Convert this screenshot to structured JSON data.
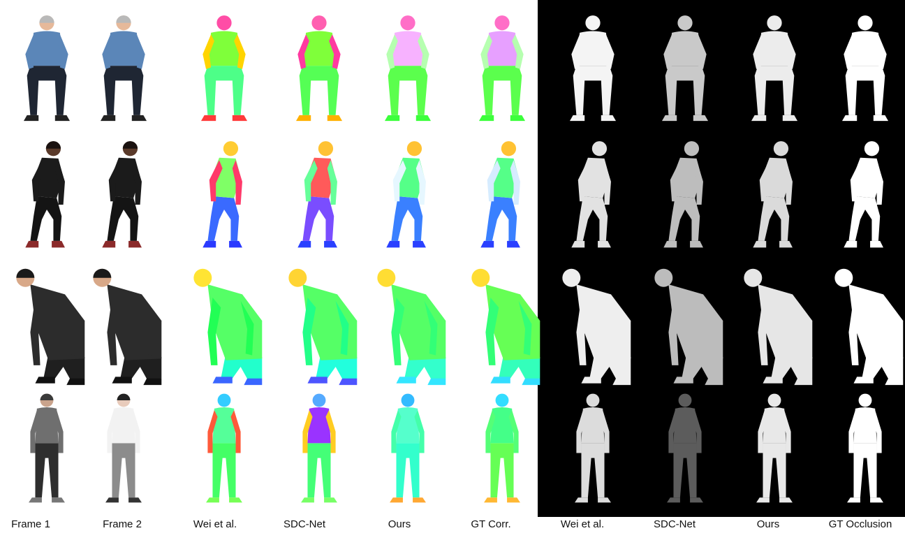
{
  "figure": {
    "captions": [
      "Frame 1",
      "Frame 2",
      "Wei et al.",
      "SDC-Net",
      "Ours",
      "GT Corr.",
      "Wei et al.",
      "SDC-Net",
      "Ours",
      "GT Occlusion"
    ],
    "rows": [
      {
        "id": "seated-man",
        "pose": "sit",
        "frame1": {
          "skin": "#e6b99a",
          "hair": "#b9b9b9",
          "top": "#5b86b8",
          "bottom": "#1f2633",
          "shoe": "#222222"
        },
        "frame2": {
          "skin": "#e6b99a",
          "hair": "#b9b9b9",
          "top": "#5b86b8",
          "bottom": "#1f2633",
          "shoe": "#222222"
        },
        "corr": {
          "wei": [
            "#ff4da6",
            "#7fff3a",
            "#ffd400",
            "#4dff88",
            "#ff3a3a"
          ],
          "sdc": [
            "#ff5fb0",
            "#7fff3a",
            "#ff3aa0",
            "#55ff55",
            "#ffb000"
          ],
          "ours": [
            "#ff6ec7",
            "#f7b2ff",
            "#b6ffb0",
            "#5bff4d",
            "#3cff3c"
          ],
          "gt": [
            "#ff6ec7",
            "#e7a0ff",
            "#b6ffb0",
            "#5bff4d",
            "#3cff3c"
          ]
        },
        "occ": {
          "wei": "#f4f4f4",
          "sdc": "#c9c9c9",
          "ours": "#ececec",
          "gt": "#ffffff"
        }
      },
      {
        "id": "crouching-woman",
        "pose": "crouch",
        "frame1": {
          "skin": "#5a3a2a",
          "hair": "#1a1210",
          "top": "#1b1b1b",
          "bottom": "#141414",
          "shoe": "#8b2a2a"
        },
        "frame2": {
          "skin": "#5a3a2a",
          "hair": "#1a1210",
          "top": "#1b1b1b",
          "bottom": "#141414",
          "shoe": "#8b2a2a"
        },
        "corr": {
          "wei": [
            "#ffcc33",
            "#7fff66",
            "#ff3a6a",
            "#3a6aff",
            "#2a3aff"
          ],
          "sdc": [
            "#ffc233",
            "#ff5a5a",
            "#66ff99",
            "#7a4dff",
            "#2a40ff"
          ],
          "ours": [
            "#ffc233",
            "#55ff88",
            "#e6f7ff",
            "#3a80ff",
            "#2a40ff"
          ],
          "gt": [
            "#ffc233",
            "#55ff88",
            "#d6ecff",
            "#3a80ff",
            "#2a40ff"
          ]
        },
        "occ": {
          "wei": "#e2e2e2",
          "sdc": "#bdbdbd",
          "ours": "#dadada",
          "gt": "#ffffff"
        }
      },
      {
        "id": "bending-man",
        "pose": "bend",
        "frame1": {
          "skin": "#d8a888",
          "hair": "#1a1a1a",
          "top": "#2c2c2c",
          "bottom": "#1f1f1f",
          "shoe": "#111111"
        },
        "frame2": {
          "skin": "#d8a888",
          "hair": "#1a1a1a",
          "top": "#2c2c2c",
          "bottom": "#1f1f1f",
          "shoe": "#111111"
        },
        "corr": {
          "wei": [
            "#ffe433",
            "#55ff66",
            "#22ff55",
            "#22ffcc",
            "#3a66ff"
          ],
          "sdc": [
            "#ffd433",
            "#55ff66",
            "#22ff88",
            "#22ffdd",
            "#4d55ff"
          ],
          "ours": [
            "#ffdd33",
            "#55ff66",
            "#33ff77",
            "#33ffcc",
            "#33e6ff"
          ],
          "gt": [
            "#ffdd33",
            "#66ff55",
            "#33ff77",
            "#33ffbb",
            "#33ddff"
          ]
        },
        "occ": {
          "wei": "#eeeeee",
          "sdc": "#bcbcbc",
          "ours": "#e6e6e6",
          "gt": "#ffffff"
        }
      },
      {
        "id": "walking-woman",
        "pose": "stand",
        "frame1": {
          "skin": "#c9a38c",
          "hair": "#3a3a3a",
          "top": "#6f6f6f",
          "bottom": "#2e2e2e",
          "shoe": "#777777"
        },
        "frame2": {
          "skin": "#e8cbbb",
          "hair": "#222222",
          "top": "#f2f2f2",
          "bottom": "#8c8c8c",
          "shoe": "#333333"
        },
        "corr": {
          "wei": [
            "#33ccff",
            "#55ff99",
            "#ff5a3a",
            "#44ff66",
            "#77ff55"
          ],
          "sdc": [
            "#55aaff",
            "#9a33ff",
            "#ffcc22",
            "#44ff77",
            "#77ff66"
          ],
          "ours": [
            "#33bbff",
            "#55ffcc",
            "#44ffaa",
            "#33ffcc",
            "#ffa833"
          ],
          "gt": [
            "#33ddff",
            "#44ff88",
            "#55ff77",
            "#66ff55",
            "#ffb833"
          ]
        },
        "occ": {
          "wei": "#dcdcdc",
          "sdc": "#5c5c5c",
          "ours": "#e8e8e8",
          "gt": "#ffffff"
        }
      }
    ]
  }
}
